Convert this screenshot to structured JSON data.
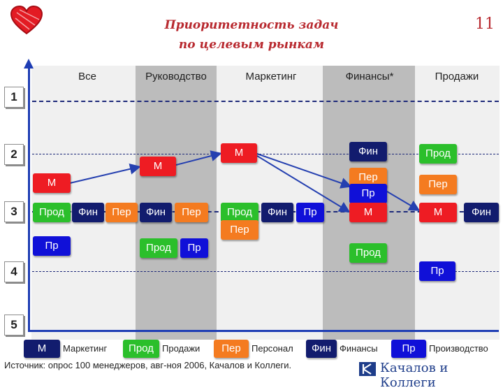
{
  "title_line1": "Приоритетность задач",
  "title_line2": "по целевым рынкам",
  "slide_number": "11",
  "columns": [
    "Все",
    "Руководство",
    "Маркетинг",
    "Финансы*",
    "Продажи"
  ],
  "ranks": [
    "1",
    "2",
    "3",
    "4",
    "5"
  ],
  "tags": {
    "vse_m": "М",
    "vse_prod": "Прод",
    "vse_fin": "Фин",
    "vse_per": "Пер",
    "vse_pr": "Пр",
    "ruk_m": "М",
    "ruk_fin": "Фин",
    "ruk_per": "Пер",
    "ruk_prod": "Прод",
    "ruk_pr": "Пр",
    "mark_m": "М",
    "mark_prod": "Прод",
    "mark_per": "Пер",
    "mark_fin": "Фин",
    "mark_pr": "Пр",
    "fin_fin": "Фин",
    "fin_per": "Пер",
    "fin_pr": "Пр",
    "fin_m": "М",
    "fin_prod": "Прод",
    "prodazhi_prod": "Прод",
    "prodazhi_per": "Пер",
    "prodazhi_m": "М",
    "prodazhi_fin": "Фин",
    "prodazhi_pr": "Пр"
  },
  "legend": [
    {
      "abbr": "М",
      "label": "Маркетинг",
      "color": "#121c6e"
    },
    {
      "abbr": "Прод",
      "label": "Продажи",
      "color": "#2bbf2b"
    },
    {
      "abbr": "Пер",
      "label": "Персонал",
      "color": "#f47b20"
    },
    {
      "abbr": "Фин",
      "label": "Финансы",
      "color": "#121c6e"
    },
    {
      "abbr": "Пр",
      "label": "Производство",
      "color": "#1010d8"
    }
  ],
  "source": "Источник: опрос 100 менеджеров, авг-ноя 2006, Качалов и Коллеги.",
  "logo_text": "Качалов и Коллеги",
  "colors": {
    "title": "#b8292f",
    "axis": "#1e3db4",
    "marketing": "#ee1c23",
    "sales": "#2bbf2b",
    "personnel": "#f47b20",
    "finance": "#121c6e",
    "production": "#1010d8"
  }
}
